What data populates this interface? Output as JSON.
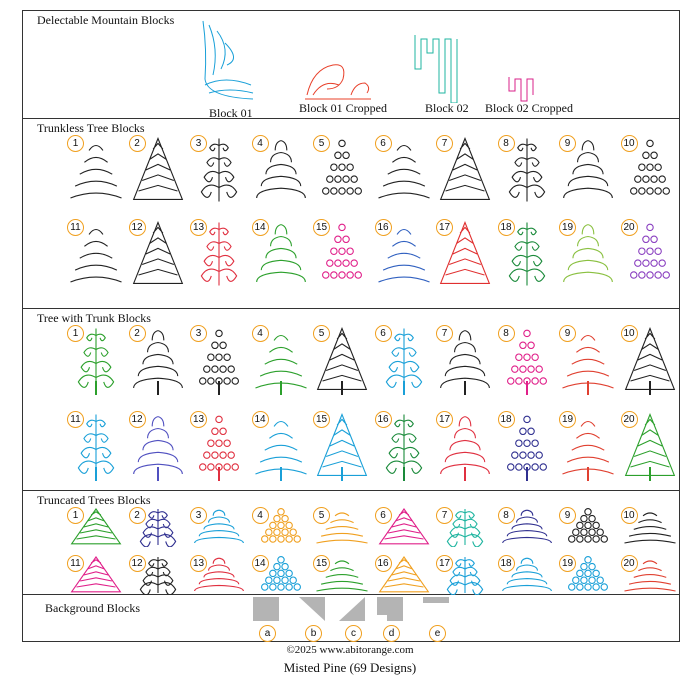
{
  "sections": {
    "mountain": {
      "title": "Delectable Mountain Blocks",
      "blocks": [
        {
          "label": "Block 01",
          "color": "#1aa0d8"
        },
        {
          "label": "Block 01 Cropped",
          "color": "#e8402a"
        },
        {
          "label": "Block 02",
          "color": "#1fb5a0"
        },
        {
          "label": "Block 02 Cropped",
          "color": "#d8208a"
        }
      ]
    },
    "trunkless": {
      "title": "Trunkless Tree Blocks",
      "row1_colors": [
        "#222222",
        "#222222",
        "#222222",
        "#222222",
        "#222222",
        "#222222",
        "#222222",
        "#222222",
        "#222222",
        "#222222"
      ],
      "row2_colors": [
        "#222222",
        "#222222",
        "#e03040",
        "#2ca02c",
        "#e0208a",
        "#3060c0",
        "#e03030",
        "#1a8a3a",
        "#8ac040",
        "#8a40c0"
      ]
    },
    "trunk": {
      "title": "Tree with Trunk Blocks",
      "row1_colors": [
        "#2ca02c",
        "#222222",
        "#222222",
        "#2ca02c",
        "#222222",
        "#1aa0d8",
        "#222222",
        "#e0208a",
        "#e04030",
        "#222222"
      ],
      "row2_colors": [
        "#1aa0d8",
        "#5050c0",
        "#e03040",
        "#1aa0d8",
        "#1aa0d8",
        "#1a8a3a",
        "#e03040",
        "#303090",
        "#e04030",
        "#2ca02c"
      ]
    },
    "truncated": {
      "title": "Truncated Trees Blocks",
      "row1_colors": [
        "#2ca02c",
        "#303090",
        "#1aa0d8",
        "#f0a020",
        "#f0a020",
        "#e0208a",
        "#1fb5a0",
        "#303090",
        "#222222",
        "#222222"
      ],
      "row2_colors": [
        "#e0208a",
        "#222222",
        "#e03040",
        "#1aa0d8",
        "#2ca02c",
        "#f0a020",
        "#1aa0d8",
        "#1aa0d8",
        "#1aa0d8",
        "#e04030"
      ]
    },
    "background": {
      "title": "Background Blocks",
      "labels": [
        "a",
        "b",
        "c",
        "d",
        "e"
      ]
    }
  },
  "numbers": [
    "1",
    "2",
    "3",
    "4",
    "5",
    "6",
    "7",
    "8",
    "9",
    "10",
    "11",
    "12",
    "13",
    "14",
    "15",
    "16",
    "17",
    "18",
    "19",
    "20"
  ],
  "footer": {
    "copyright": "©2025 www.abitorange.com",
    "title": "Misted Pine (69 Designs)"
  }
}
